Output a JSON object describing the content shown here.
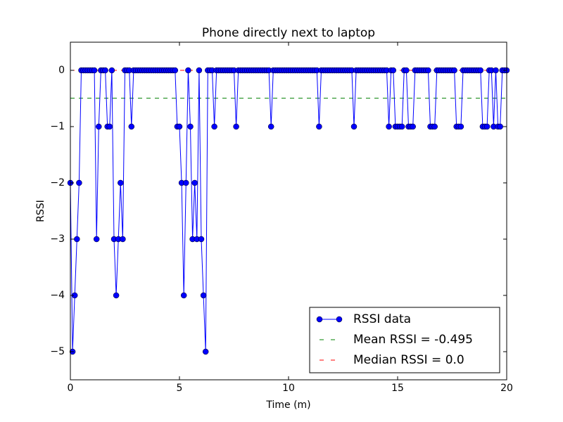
{
  "chart_data": {
    "type": "line",
    "title": "Phone directly next to laptop",
    "x_label": "Time (m)",
    "y_label": "RSSI",
    "x": [
      0,
      0.1,
      0.2,
      0.3,
      0.4,
      0.5,
      0.6,
      0.7,
      0.8,
      0.9,
      1,
      1.1,
      1.2,
      1.3,
      1.4,
      1.5,
      1.6,
      1.7,
      1.8,
      1.9,
      2,
      2.1,
      2.2,
      2.3,
      2.4,
      2.5,
      2.6,
      2.7,
      2.8,
      2.9,
      3,
      3.1,
      3.2,
      3.3,
      3.4,
      3.5,
      3.6,
      3.7,
      3.8,
      3.9,
      4,
      4.1,
      4.2,
      4.3,
      4.4,
      4.5,
      4.6,
      4.7,
      4.8,
      4.9,
      5,
      5.1,
      5.2,
      5.3,
      5.4,
      5.5,
      5.6,
      5.7,
      5.8,
      5.9,
      6,
      6.1,
      6.2,
      6.3,
      6.4,
      6.5,
      6.6,
      6.7,
      6.8,
      6.9,
      7,
      7.1,
      7.2,
      7.3,
      7.4,
      7.5,
      7.6,
      7.7,
      7.8,
      7.9,
      8,
      8.1,
      8.2,
      8.3,
      8.4,
      8.5,
      8.6,
      8.7,
      8.8,
      8.9,
      9,
      9.1,
      9.2,
      9.3,
      9.4,
      9.5,
      9.6,
      9.7,
      9.8,
      9.9,
      10,
      10.1,
      10.2,
      10.3,
      10.4,
      10.5,
      10.6,
      10.7,
      10.8,
      10.9,
      11,
      11.1,
      11.2,
      11.3,
      11.4,
      11.5,
      11.6,
      11.7,
      11.8,
      11.9,
      12,
      12.1,
      12.2,
      12.3,
      12.4,
      12.5,
      12.6,
      12.7,
      12.8,
      12.9,
      13,
      13.1,
      13.2,
      13.3,
      13.4,
      13.5,
      13.6,
      13.7,
      13.8,
      13.9,
      14,
      14.1,
      14.2,
      14.3,
      14.4,
      14.5,
      14.6,
      14.7,
      14.8,
      14.9,
      15,
      15.1,
      15.2,
      15.3,
      15.4,
      15.5,
      15.6,
      15.7,
      15.8,
      15.9,
      16,
      16.1,
      16.2,
      16.3,
      16.4,
      16.5,
      16.6,
      16.7,
      16.8,
      16.9,
      17,
      17.1,
      17.2,
      17.3,
      17.4,
      17.5,
      17.6,
      17.7,
      17.8,
      17.9,
      18,
      18.1,
      18.2,
      18.3,
      18.4,
      18.5,
      18.6,
      18.7,
      18.8,
      18.9,
      19,
      19.1,
      19.2,
      19.3,
      19.4,
      19.5,
      19.6,
      19.7,
      19.8,
      19.9,
      20
    ],
    "series": [
      {
        "name": "RSSI data",
        "color": "#0000ff",
        "values": [
          -2,
          -5,
          -4,
          -3,
          -2,
          0,
          0,
          0,
          0,
          0,
          0,
          0,
          -3,
          -1,
          0,
          0,
          0,
          -1,
          -1,
          0,
          -3,
          -4,
          -3,
          -2,
          -3,
          0,
          0,
          0,
          -1,
          0,
          0,
          0,
          0,
          0,
          0,
          0,
          0,
          0,
          0,
          0,
          0,
          0,
          0,
          0,
          0,
          0,
          0,
          0,
          0,
          -1,
          -1,
          -2,
          -4,
          -2,
          0,
          -1,
          -3,
          -2,
          -3,
          0,
          -3,
          -4,
          -5,
          0,
          0,
          0,
          -1,
          0,
          0,
          0,
          0,
          0,
          0,
          0,
          0,
          0,
          -1,
          0,
          0,
          0,
          0,
          0,
          0,
          0,
          0,
          0,
          0,
          0,
          0,
          0,
          0,
          0,
          -1,
          0,
          0,
          0,
          0,
          0,
          0,
          0,
          0,
          0,
          0,
          0,
          0,
          0,
          0,
          0,
          0,
          0,
          0,
          0,
          0,
          0,
          -1,
          0,
          0,
          0,
          0,
          0,
          0,
          0,
          0,
          0,
          0,
          0,
          0,
          0,
          0,
          0,
          -1,
          0,
          0,
          0,
          0,
          0,
          0,
          0,
          0,
          0,
          0,
          0,
          0,
          0,
          0,
          0,
          -1,
          0,
          0,
          -1,
          -1,
          -1,
          -1,
          0,
          0,
          -1,
          -1,
          -1,
          0,
          0,
          0,
          0,
          0,
          0,
          0,
          -1,
          -1,
          -1,
          0,
          0,
          0,
          0,
          0,
          0,
          0,
          0,
          0,
          -1,
          -1,
          -1,
          0,
          0,
          0,
          0,
          0,
          0,
          0,
          0,
          0,
          -1,
          -1,
          -1,
          0,
          0,
          -1,
          0,
          -1,
          -1,
          0,
          0,
          0
        ]
      }
    ],
    "hlines": [
      {
        "name": "Mean RSSI = -0.495",
        "value": -0.495,
        "color": "#008000"
      },
      {
        "name": "Median RSSI = 0.0",
        "value": 0,
        "color": "#ff0000"
      }
    ],
    "xlim": [
      0,
      20
    ],
    "ylim": [
      -5.5,
      0.5
    ],
    "xticks": [
      0,
      5,
      10,
      15,
      20
    ],
    "yticks": [
      {
        "value": -5,
        "label": "−5"
      },
      {
        "value": -4,
        "label": "−4"
      },
      {
        "value": -3,
        "label": "−3"
      },
      {
        "value": -2,
        "label": "−2"
      },
      {
        "value": -1,
        "label": "−1"
      },
      0
    ],
    "legend": "lower right"
  }
}
